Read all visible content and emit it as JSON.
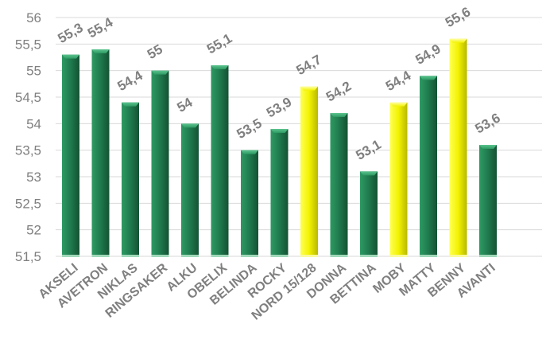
{
  "chart_data": {
    "type": "bar",
    "title": "",
    "xlabel": "",
    "ylabel": "",
    "categories": [
      "AKSELI",
      "AVETRON",
      "NIKLAS",
      "RINGSAKER",
      "ALKU",
      "OBELIX",
      "BELINDA",
      "ROCKY",
      "NORD 15/128",
      "DONNA",
      "BETTINA",
      "MOBY",
      "MATTY",
      "BENNY",
      "AVANTI"
    ],
    "values": [
      55.3,
      55.4,
      54.4,
      55.0,
      54.0,
      55.1,
      53.5,
      53.9,
      54.7,
      54.2,
      53.1,
      54.4,
      54.9,
      55.6,
      53.6
    ],
    "value_labels": [
      "55,3",
      "55,4",
      "54,4",
      "55",
      "54",
      "55,1",
      "53,5",
      "53,9",
      "54,7",
      "54,2",
      "53,1",
      "54,4",
      "54,9",
      "55,6",
      "53,6"
    ],
    "highlighted": [
      false,
      false,
      false,
      false,
      false,
      false,
      false,
      false,
      true,
      false,
      false,
      true,
      false,
      true,
      false
    ],
    "ylim": [
      51.5,
      56
    ],
    "yticks": [
      51.5,
      52,
      52.5,
      53,
      53.5,
      54,
      54.5,
      55,
      55.5,
      56
    ],
    "ytick_labels": [
      "51,5",
      "52",
      "52,5",
      "53",
      "53,5",
      "54",
      "54,5",
      "55",
      "55,5",
      "56"
    ],
    "grid": true,
    "legend": "none",
    "colors": {
      "default_bar": "#1f7a4d",
      "highlight_bar": "#f2f200",
      "text": "#7f7f7f",
      "grid": "#d9d9d9"
    }
  }
}
